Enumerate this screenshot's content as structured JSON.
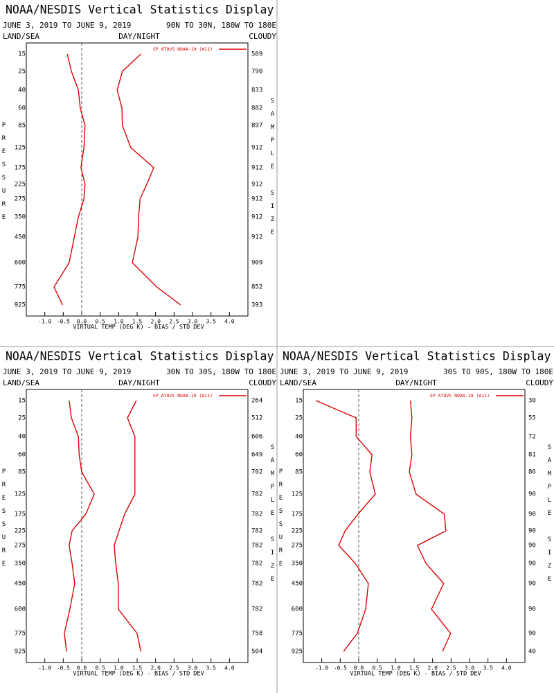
{
  "chart_data": [
    {
      "type": "line",
      "title": "NOAA/NESDIS Vertical Statistics Display",
      "date_range": "JUNE 3, 2019 TO JUNE 9, 2019",
      "region": "90N TO 30N, 180W TO 180E",
      "land_sea": "LAND/SEA",
      "day_night": "DAY/NIGHT",
      "cloud": "CLOUDY",
      "y_label": "PRESSURE",
      "y2_label": "SAMPLE SIZE",
      "x_label": "VIRTUAL TEMP (DEG K) - BIAS / STD DEV",
      "categories": [
        15,
        25,
        40,
        60,
        85,
        125,
        175,
        225,
        275,
        350,
        450,
        600,
        775,
        925
      ],
      "sample_size": [
        589,
        790,
        833,
        882,
        897,
        912,
        912,
        912,
        912,
        912,
        912,
        909,
        852,
        393
      ],
      "series": [
        {
          "name": "SP ATOVS NOAA-19 (A11)",
          "color": "#dd0000",
          "bias": [
            -0.39,
            -0.28,
            -0.09,
            -0.04,
            0.09,
            0.06,
            -0.02,
            0.09,
            0.06,
            -0.09,
            -0.2,
            -0.34,
            -0.75,
            -0.52
          ],
          "std_dev": [
            1.6,
            1.1,
            0.96,
            1.09,
            1.1,
            1.33,
            1.95,
            1.76,
            1.58,
            1.54,
            1.52,
            1.37,
            2.03,
            2.68
          ]
        }
      ],
      "xlim": [
        -1.5,
        4.5
      ],
      "xticks": [
        {
          "value": -1,
          "label": "-1.0"
        },
        {
          "value": -0.5,
          "label": "-0.5"
        },
        {
          "value": 0,
          "label": "0.0"
        },
        {
          "value": 0.5,
          "label": "0.5"
        },
        {
          "value": 1,
          "label": "1.0"
        },
        {
          "value": 1.5,
          "label": "1.5"
        },
        {
          "value": 2,
          "label": "2.0"
        },
        {
          "value": 2.5,
          "label": "2.5"
        },
        {
          "value": 3,
          "label": "3.0"
        },
        {
          "value": 3.5,
          "label": "3.5"
        },
        {
          "value": 4,
          "label": "4.0"
        }
      ]
    },
    {
      "type": "line",
      "title": "NOAA/NESDIS Vertical Statistics Display",
      "date_range": "JUNE 3, 2019 TO JUNE 9, 2019",
      "region": "30N TO 30S, 180W TO 180E",
      "land_sea": "LAND/SEA",
      "day_night": "DAY/NIGHT",
      "cloud": "CLOUDY",
      "y_label": "PRESSURE",
      "y2_label": "SAMPLE SIZE",
      "x_label": "VIRTUAL TEMP (DEG K) - BIAS / STD DEV",
      "categories": [
        15,
        25,
        40,
        60,
        85,
        125,
        175,
        225,
        275,
        350,
        450,
        600,
        775,
        925
      ],
      "sample_size": [
        264,
        512,
        606,
        649,
        702,
        782,
        782,
        782,
        782,
        782,
        782,
        782,
        758,
        504
      ],
      "series": [
        {
          "name": "SP ATOVS NOAA-19 (A11)",
          "color": "#dd0000",
          "bias": [
            -0.34,
            -0.28,
            -0.09,
            -0.07,
            0.0,
            0.34,
            0.11,
            -0.26,
            -0.34,
            -0.26,
            -0.19,
            -0.32,
            -0.47,
            -0.41
          ],
          "std_dev": [
            1.48,
            1.24,
            1.44,
            1.44,
            1.44,
            1.44,
            1.16,
            1.01,
            0.88,
            0.92,
            0.99,
            0.99,
            1.5,
            1.6
          ]
        }
      ],
      "xlim": [
        -1.5,
        4.5
      ],
      "xticks": [
        {
          "value": -1,
          "label": "-1.0"
        },
        {
          "value": -0.5,
          "label": "-0.5"
        },
        {
          "value": 0,
          "label": "0.0"
        },
        {
          "value": 0.5,
          "label": "0.5"
        },
        {
          "value": 1,
          "label": "1.0"
        },
        {
          "value": 1.5,
          "label": "1.5"
        },
        {
          "value": 2,
          "label": "2.0"
        },
        {
          "value": 2.5,
          "label": "2.5"
        },
        {
          "value": 3,
          "label": "3.0"
        },
        {
          "value": 3.5,
          "label": "3.5"
        },
        {
          "value": 4,
          "label": "4.0"
        }
      ]
    },
    {
      "type": "line",
      "title": "NOAA/NESDIS Vertical Statistics Display",
      "date_range": "JUNE 3, 2019 TO JUNE 9, 2019",
      "region": "30S TO 90S, 180W TO 180E",
      "land_sea": "LAND/SEA",
      "day_night": "DAY/NIGHT",
      "cloud": "CLOUDY",
      "y_label": "PRESSURE",
      "y2_label": "SAMPLE SIZE",
      "x_label": "VIRTUAL TEMP (DEG K) - BIAS / STD DEV",
      "categories": [
        15,
        25,
        40,
        60,
        85,
        125,
        175,
        225,
        275,
        350,
        450,
        600,
        775,
        925
      ],
      "sample_size": [
        30,
        55,
        72,
        81,
        86,
        90,
        90,
        90,
        90,
        90,
        90,
        90,
        90,
        40
      ],
      "series": [
        {
          "name": "SP ATOVS NOAA-19 (A11)",
          "color": "#dd0000",
          "bias": [
            -1.16,
            -0.07,
            -0.07,
            0.36,
            0.3,
            0.45,
            -0.02,
            -0.37,
            -0.54,
            -0.09,
            0.26,
            0.19,
            -0.04,
            -0.41
          ],
          "std_dev": [
            1.4,
            1.44,
            1.4,
            1.44,
            1.37,
            1.55,
            2.32,
            2.36,
            1.59,
            1.82,
            2.3,
            1.97,
            2.49,
            2.27
          ]
        }
      ],
      "xlim": [
        -1.5,
        4.5
      ],
      "xticks": [
        {
          "value": -1,
          "label": "-1.0"
        },
        {
          "value": -0.5,
          "label": "-0.5"
        },
        {
          "value": 0,
          "label": "0.0"
        },
        {
          "value": 0.5,
          "label": "0.5"
        },
        {
          "value": 1,
          "label": "1.0"
        },
        {
          "value": 1.5,
          "label": "1.5"
        },
        {
          "value": 2,
          "label": "2.0"
        },
        {
          "value": 2.5,
          "label": "2.5"
        },
        {
          "value": 3,
          "label": "3.0"
        },
        {
          "value": 3.5,
          "label": "3.5"
        },
        {
          "value": 4,
          "label": "4.0"
        }
      ]
    }
  ]
}
